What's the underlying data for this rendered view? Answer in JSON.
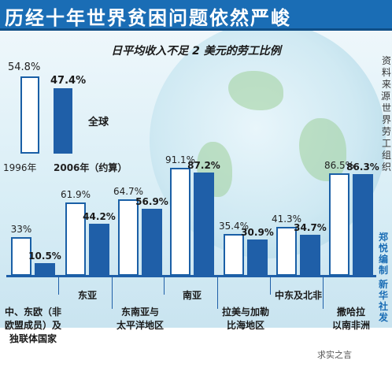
{
  "title": "历经十年世界贫困问题依然严峻",
  "source_note": "资料来源：世界劳工组织",
  "credits": [
    "郑悦编制",
    "新华社发"
  ],
  "watermark": "求实之言",
  "colors": {
    "old_bar_border": "#1a5fa6",
    "new_bar": "#1f5fa8",
    "title_bg": "#1a6db5"
  },
  "chart_data": {
    "type": "bar",
    "title": "日平均收入不足 2 美元的劳工比例",
    "unit": "%",
    "ylim": [
      0,
      100
    ],
    "legend": {
      "old_label": "1996年",
      "new_label": "2006年（约算）",
      "global_label": "全球",
      "global_old_text": "54.8%",
      "global_new_text": "47.4%",
      "global_old": 54.8,
      "global_new": 47.4
    },
    "series": [
      {
        "name": "1996年",
        "values": [
          33,
          61.9,
          64.7,
          91.1,
          35.4,
          41.3,
          86.5
        ],
        "labels": [
          "33%",
          "61.9%",
          "64.7%",
          "91.1%",
          "35.4%",
          "41.3%",
          "86.5%"
        ]
      },
      {
        "name": "2006年（约算）",
        "values": [
          10.5,
          44.2,
          56.9,
          87.2,
          30.9,
          34.7,
          86.3
        ],
        "labels": [
          "10.5%",
          "44.2%",
          "56.9%",
          "87.2%",
          "30.9%",
          "34.7%",
          "86.3%"
        ]
      }
    ],
    "categories": [
      "中、东欧（非\n欧盟成员）及\n独联体国家",
      "东亚",
      "东南亚与\n太平洋地区",
      "南亚",
      "拉美与加勒\n比海地区",
      "中东及北非",
      "撒哈拉\n以南非洲"
    ]
  }
}
